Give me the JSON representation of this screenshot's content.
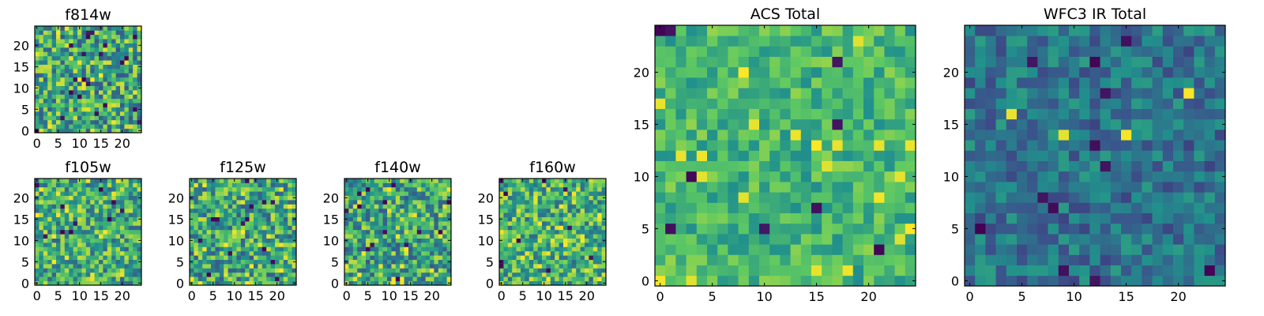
{
  "colormap": {
    "name": "viridis",
    "colors": [
      "#440154",
      "#3b528b",
      "#21918c",
      "#5ec962",
      "#fde725"
    ]
  },
  "chart_data": [
    {
      "id": "f814w",
      "type": "heatmap",
      "title": "f814w",
      "grid_size": 25,
      "extent": [
        0,
        25
      ],
      "xticks": [
        0,
        5,
        10,
        15,
        20
      ],
      "yticks": [
        0,
        5,
        10,
        15,
        20
      ],
      "value_mean": 0.6,
      "value_spread": 0.42,
      "dark_pixels": 22,
      "bright_pixels": 20
    },
    {
      "id": "f105w",
      "type": "heatmap",
      "title": "f105w",
      "grid_size": 25,
      "extent": [
        0,
        25
      ],
      "xticks": [
        0,
        5,
        10,
        15,
        20
      ],
      "yticks": [
        0,
        5,
        10,
        15,
        20
      ],
      "value_mean": 0.62,
      "value_spread": 0.38,
      "dark_pixels": 10,
      "bright_pixels": 18
    },
    {
      "id": "f125w",
      "type": "heatmap",
      "title": "f125w",
      "grid_size": 25,
      "extent": [
        0,
        25
      ],
      "xticks": [
        0,
        5,
        10,
        15,
        20
      ],
      "yticks": [
        0,
        5,
        10,
        15,
        20
      ],
      "value_mean": 0.6,
      "value_spread": 0.4,
      "dark_pixels": 14,
      "bright_pixels": 22
    },
    {
      "id": "f140w",
      "type": "heatmap",
      "title": "f140w",
      "grid_size": 25,
      "extent": [
        0,
        25
      ],
      "xticks": [
        0,
        5,
        10,
        15,
        20
      ],
      "yticks": [
        0,
        5,
        10,
        15,
        20
      ],
      "value_mean": 0.6,
      "value_spread": 0.4,
      "dark_pixels": 14,
      "bright_pixels": 24
    },
    {
      "id": "f160w",
      "type": "heatmap",
      "title": "f160w",
      "grid_size": 25,
      "extent": [
        0,
        25
      ],
      "xticks": [
        0,
        5,
        10,
        15,
        20
      ],
      "yticks": [
        0,
        5,
        10,
        15,
        20
      ],
      "value_mean": 0.64,
      "value_spread": 0.38,
      "dark_pixels": 10,
      "bright_pixels": 26
    },
    {
      "id": "acs-total",
      "type": "heatmap",
      "title": "ACS Total",
      "grid_size": 25,
      "extent": [
        0,
        25
      ],
      "xticks": [
        0,
        5,
        10,
        15,
        20
      ],
      "yticks": [
        0,
        5,
        10,
        15,
        20
      ],
      "value_mean": 0.66,
      "value_spread": 0.22,
      "dark_pixels": 9,
      "bright_pixels": 22
    },
    {
      "id": "wfc3-ir-total",
      "type": "heatmap",
      "title": "WFC3 IR Total",
      "grid_size": 25,
      "extent": [
        0,
        25
      ],
      "xticks": [
        0,
        5,
        10,
        15,
        20
      ],
      "yticks": [
        0,
        5,
        10,
        15,
        20
      ],
      "value_mean": 0.38,
      "value_spread": 0.22,
      "dark_pixels": 12,
      "bright_pixels": 4
    }
  ]
}
